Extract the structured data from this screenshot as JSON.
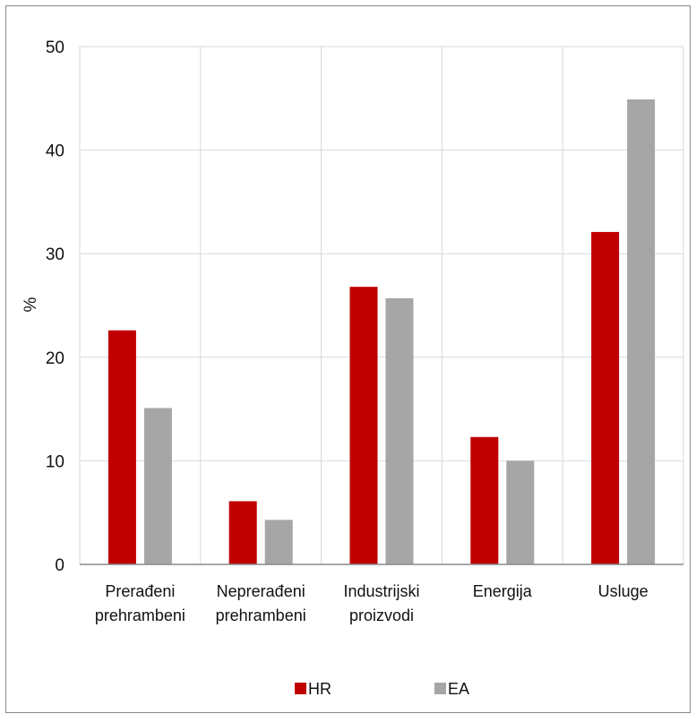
{
  "chart_data": {
    "type": "bar",
    "categories": [
      [
        "Prerađeni",
        "prehrambeni"
      ],
      [
        "Neprerađeni",
        "prehrambeni"
      ],
      [
        "Industrijski",
        "proizvodi"
      ],
      [
        "Energija"
      ],
      [
        "Usluge"
      ]
    ],
    "series": [
      {
        "name": "HR",
        "color": "#c00000",
        "values": [
          22.6,
          6.1,
          26.8,
          12.3,
          32.1
        ]
      },
      {
        "name": "EA",
        "color": "#a6a6a6",
        "values": [
          15.1,
          4.3,
          25.7,
          10.0,
          44.9
        ]
      }
    ],
    "title": "",
    "xlabel": "",
    "ylabel": "%",
    "ylim": [
      0,
      50
    ],
    "yticks": [
      0,
      10,
      20,
      30,
      40,
      50
    ],
    "grid": true,
    "legend_position": "bottom"
  }
}
